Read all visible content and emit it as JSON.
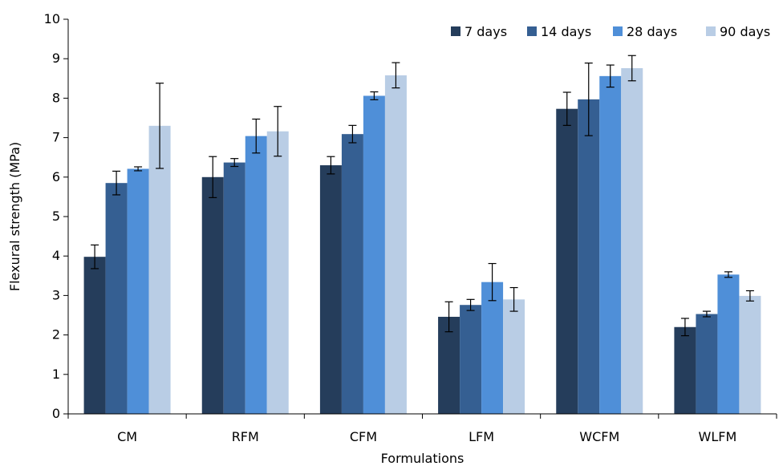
{
  "chart_data": {
    "type": "bar",
    "title": "",
    "xlabel": "Formulations",
    "ylabel": "Flexural strength (MPa)",
    "ylim": [
      0,
      10
    ],
    "yticks": [
      0,
      1,
      2,
      3,
      4,
      5,
      6,
      7,
      8,
      9,
      10
    ],
    "grid": false,
    "legend_position": "top-right",
    "categories": [
      "CM",
      "RFM",
      "CFM",
      "LFM",
      "WCFM",
      "WLFM"
    ],
    "series": [
      {
        "name": "7 days",
        "color": "#253d5b",
        "values": [
          3.98,
          6.0,
          6.3,
          2.46,
          7.73,
          2.2
        ],
        "errors": [
          0.3,
          0.52,
          0.22,
          0.38,
          0.42,
          0.22
        ]
      },
      {
        "name": "14 days",
        "color": "#355f92",
        "values": [
          5.85,
          6.37,
          7.09,
          2.76,
          7.97,
          2.53
        ],
        "errors": [
          0.3,
          0.1,
          0.22,
          0.14,
          0.92,
          0.07
        ]
      },
      {
        "name": "28 days",
        "color": "#4f8fd8",
        "values": [
          6.21,
          7.04,
          8.06,
          3.34,
          8.56,
          3.53
        ],
        "errors": [
          0.05,
          0.43,
          0.1,
          0.47,
          0.28,
          0.07
        ]
      },
      {
        "name": "90 days",
        "color": "#b9cde5",
        "values": [
          7.3,
          7.16,
          8.58,
          2.9,
          8.76,
          2.99
        ],
        "errors": [
          1.08,
          0.63,
          0.32,
          0.3,
          0.32,
          0.13
        ]
      }
    ]
  }
}
